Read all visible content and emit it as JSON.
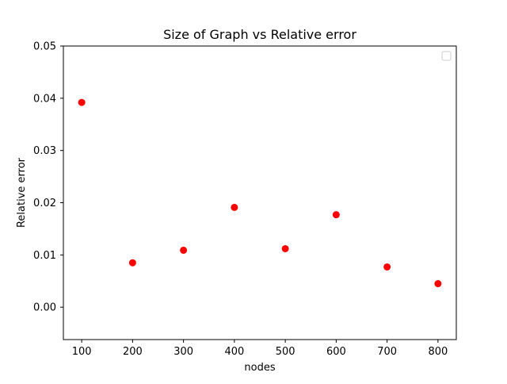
{
  "chart_data": {
    "type": "scatter",
    "title": "Size of Graph vs Relative error",
    "xlabel": "nodes",
    "ylabel": "Relative error",
    "x": [
      100,
      200,
      300,
      400,
      500,
      600,
      700,
      800
    ],
    "y": [
      0.0392,
      0.0085,
      0.0109,
      0.0191,
      0.0112,
      0.0177,
      0.0077,
      0.0045
    ],
    "xlim": [
      64,
      836
    ],
    "ylim": [
      -0.0062,
      0.05
    ],
    "xticks": [
      "100",
      "200",
      "300",
      "400",
      "500",
      "600",
      "700",
      "800"
    ],
    "xtick_values": [
      100,
      200,
      300,
      400,
      500,
      600,
      700,
      800
    ],
    "yticks": [
      "0.00",
      "0.01",
      "0.02",
      "0.03",
      "0.04",
      "0.05"
    ],
    "ytick_values": [
      0,
      0.01,
      0.02,
      0.03,
      0.04,
      0.05
    ],
    "marker_color": "#ff0000",
    "grid": false,
    "legend": {
      "placement": "top-right",
      "entries": []
    }
  }
}
